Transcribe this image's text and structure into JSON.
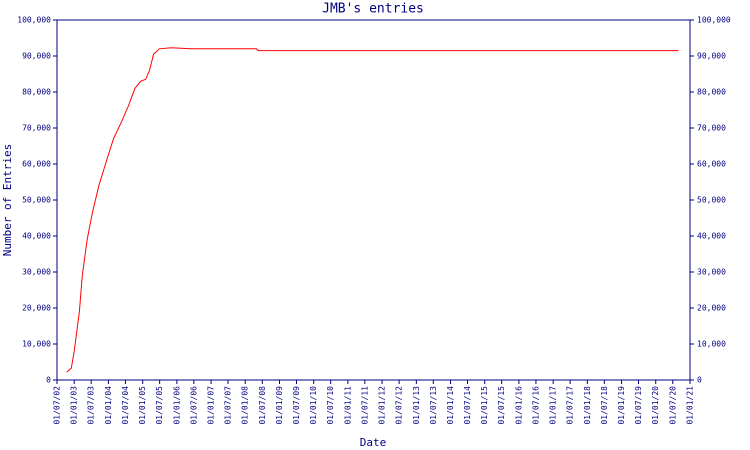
{
  "chart_data": {
    "type": "line",
    "title": "JMB's entries",
    "x_label": "Date",
    "y_label": "Number of Entries",
    "color": "#ff0000",
    "x": [
      "13/10/02",
      "01/12/02",
      "01/01/03",
      "25/02/03",
      "28/03/03",
      "19/05/03",
      "10/07/03",
      "21/09/03",
      "13/12/03",
      "24/02/04",
      "07/05/04",
      "30/07/04",
      "10/10/04",
      "11/12/04",
      "01/02/05",
      "15/03/05",
      "27/04/05",
      "28/06/05",
      "01/11/05",
      "01/06/06",
      "01/05/08",
      "15/05/08",
      "01/09/20"
    ],
    "values": [
      2200,
      3300,
      8000,
      19000,
      29000,
      39000,
      46000,
      54000,
      61000,
      67000,
      71000,
      76000,
      81000,
      83000,
      83500,
      86000,
      90500,
      92000,
      92300,
      92000,
      92000,
      91500,
      91500
    ],
    "xlim": [
      "01/07/02",
      "01/01/21"
    ],
    "xticks": [
      "01/07/02",
      "01/01/03",
      "01/07/03",
      "01/01/04",
      "01/07/04",
      "01/01/05",
      "01/07/05",
      "01/01/06",
      "01/07/06",
      "01/01/07",
      "01/07/07",
      "01/01/08",
      "01/07/08",
      "01/01/09",
      "01/07/09",
      "01/01/10",
      "01/07/10",
      "01/01/11",
      "01/07/11",
      "01/01/12",
      "01/07/12",
      "01/01/13",
      "01/07/13",
      "01/01/14",
      "01/07/14",
      "01/01/15",
      "01/07/15",
      "01/01/16",
      "01/07/16",
      "01/01/17",
      "01/07/17",
      "01/01/18",
      "01/07/18",
      "01/01/19",
      "01/07/19",
      "01/01/20",
      "01/07/20",
      "01/01/21"
    ],
    "ylim": [
      0,
      100000
    ],
    "yticks": [
      0,
      {
        "value": 10000,
        "label": "10,000"
      },
      {
        "value": 20000,
        "label": "20,000"
      },
      {
        "value": 30000,
        "label": "30,000"
      },
      {
        "value": 40000,
        "label": "40,000"
      },
      {
        "value": 50000,
        "label": "50,000"
      },
      {
        "value": 60000,
        "label": "60,000"
      },
      {
        "value": 70000,
        "label": "70,000"
      },
      {
        "value": 80000,
        "label": "80,000"
      },
      {
        "value": 90000,
        "label": "90,000"
      },
      {
        "value": 100000,
        "label": "100,000"
      }
    ],
    "y2lim": [
      0,
      100000
    ],
    "y2ticks": [
      0,
      {
        "value": 10000,
        "label": "10,000"
      },
      {
        "value": 20000,
        "label": "20,000"
      },
      {
        "value": 30000,
        "label": "30,000"
      },
      {
        "value": 40000,
        "label": "40,000"
      },
      {
        "value": 50000,
        "label": "50,000"
      },
      {
        "value": 60000,
        "label": "60,000"
      },
      {
        "value": 70000,
        "label": "70,000"
      },
      {
        "value": 80000,
        "label": "80,000"
      },
      {
        "value": 90000,
        "label": "90,000"
      },
      {
        "value": 100000,
        "label": "100,000"
      }
    ]
  }
}
